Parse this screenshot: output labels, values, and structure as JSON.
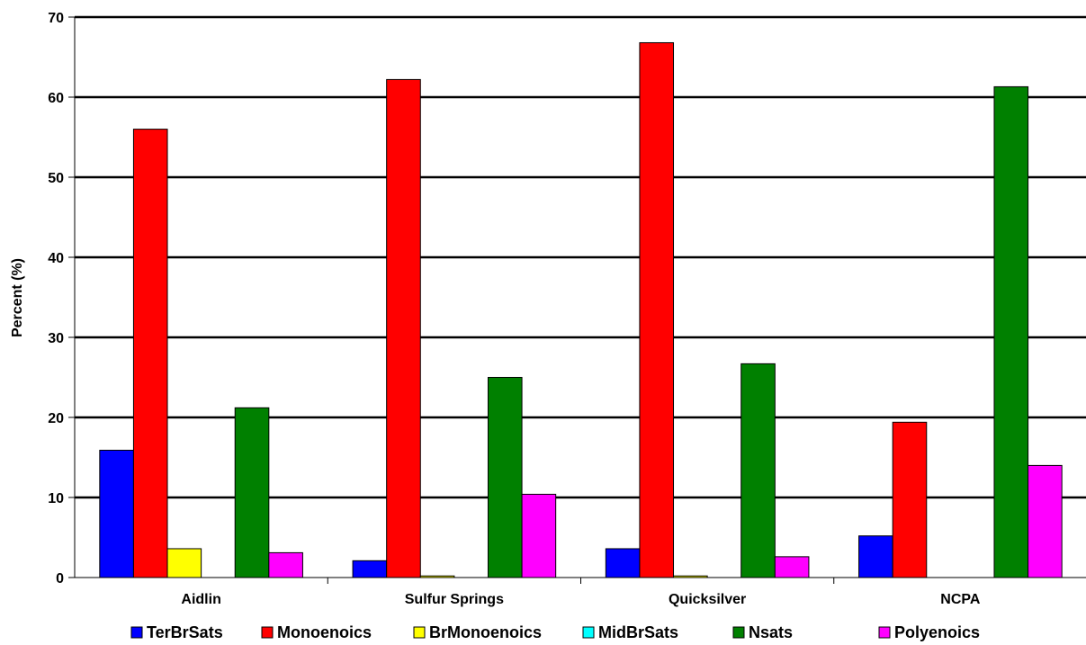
{
  "chart_data": {
    "type": "bar",
    "title": "",
    "xlabel": "",
    "ylabel": "Percent (%)",
    "ylim": [
      0,
      70
    ],
    "yticks": [
      0,
      10,
      20,
      30,
      40,
      50,
      60,
      70
    ],
    "grid": true,
    "legend_position": "bottom",
    "categories": [
      "Aidlin",
      "Sulfur Springs",
      "Quicksilver",
      "NCPA"
    ],
    "series": [
      {
        "name": "TerBrSats",
        "color": "#0000ff",
        "values": [
          15.9,
          2.1,
          3.6,
          5.2
        ]
      },
      {
        "name": "Monoenoics",
        "color": "#ff0000",
        "values": [
          56.0,
          62.2,
          66.8,
          19.4
        ]
      },
      {
        "name": "BrMonoenoics",
        "color": "#ffff00",
        "values": [
          3.6,
          0.2,
          0.2,
          0.0
        ]
      },
      {
        "name": "MidBrSats",
        "color": "#00ffff",
        "values": [
          0.0,
          0.0,
          0.0,
          0.0
        ]
      },
      {
        "name": "Nsats",
        "color": "#008000",
        "values": [
          21.2,
          25.0,
          26.7,
          61.3
        ]
      },
      {
        "name": "Polyenoics",
        "color": "#ff00ff",
        "values": [
          3.1,
          10.4,
          2.6,
          14.0
        ]
      }
    ]
  }
}
